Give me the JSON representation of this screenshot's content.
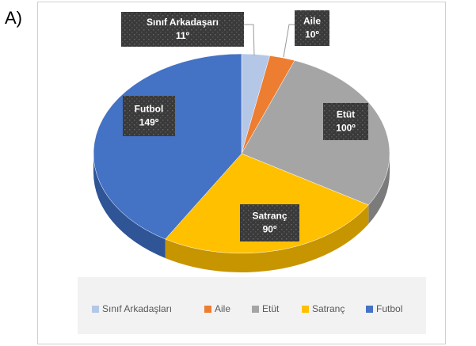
{
  "chart_data": {
    "type": "pie",
    "panel_label": "A)",
    "categories": [
      "Sınıf Arkadaşları",
      "Aile",
      "Etüt",
      "Satranç",
      "Futbol"
    ],
    "label_categories": [
      "Sınıf Arkadaşarı",
      "Aile",
      "Etüt",
      "Satranç",
      "Futbol"
    ],
    "values": [
      11,
      10,
      100,
      90,
      149
    ],
    "value_labels": [
      "11º",
      "10º",
      "100º",
      "90º",
      "149º"
    ],
    "colors": [
      "#b4c7e7",
      "#ed7d31",
      "#a5a5a5",
      "#ffc000",
      "#4472c4"
    ],
    "side_colors": [
      "#8a9bb8",
      "#b95c20",
      "#7b7b7b",
      "#c79500",
      "#2f5597"
    ],
    "legend": "bottom"
  }
}
